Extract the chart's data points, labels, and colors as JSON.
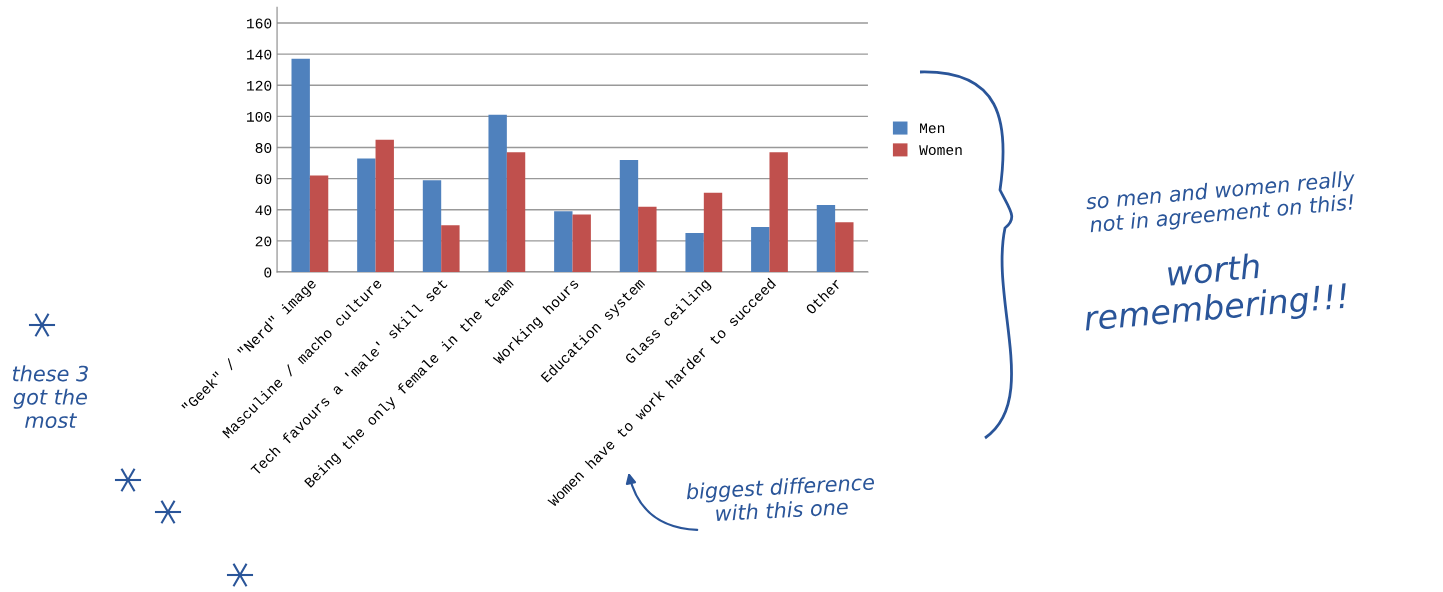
{
  "chart_data": {
    "type": "bar",
    "categories": [
      "\"Geek\" / \"Nerd\" image",
      "Masculine / macho culture",
      "Tech favours a 'male' skill set",
      "Being the only female in the team",
      "Working hours",
      "Education system",
      "Glass ceiling",
      "Women have to work harder to succeed",
      "Other"
    ],
    "series": [
      {
        "name": "Men",
        "color": "#4f81bd",
        "values": [
          137,
          73,
          59,
          101,
          39,
          72,
          25,
          29,
          43
        ]
      },
      {
        "name": "Women",
        "color": "#c0504d",
        "values": [
          62,
          85,
          30,
          77,
          37,
          42,
          51,
          77,
          32
        ]
      }
    ],
    "ylim": [
      0,
      170
    ],
    "yticks": [
      0,
      20,
      40,
      60,
      80,
      100,
      120,
      140,
      160
    ],
    "grid": "y",
    "legend": "right",
    "annotations": [
      "so men and women really\nnot in agreement on this!",
      "worth\nremembering!!!",
      "these 3\ngot the\nmost",
      "biggest difference\nwith this one"
    ]
  }
}
